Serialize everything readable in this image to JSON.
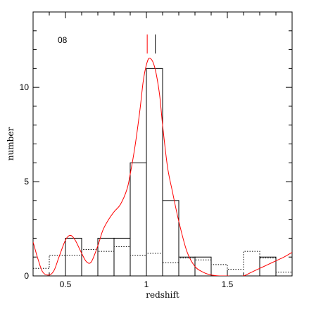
{
  "chart_data": {
    "type": "bar",
    "panel_label": "08",
    "xlabel": "redshift",
    "ylabel": "number",
    "xlim": [
      0.3,
      1.9
    ],
    "ylim": [
      0,
      14
    ],
    "x_ticks": [
      0.5,
      1,
      1.5
    ],
    "x_tick_labels": [
      "0.5",
      "1",
      "1.5"
    ],
    "y_ticks": [
      0,
      5,
      10
    ],
    "y_tick_labels": [
      "0",
      "5",
      "10"
    ],
    "bin_width": 0.1,
    "histogram": {
      "bin_starts": [
        0.3,
        0.4,
        0.5,
        0.6,
        0.7,
        0.8,
        0.9,
        1.0,
        1.1,
        1.2,
        1.3,
        1.4,
        1.5,
        1.6,
        1.7,
        1.8
      ],
      "values": [
        0,
        0,
        2,
        0,
        2,
        2,
        6,
        11,
        4,
        1,
        1,
        0,
        0,
        0,
        1,
        0
      ]
    },
    "dotted_distribution": {
      "bin_starts": [
        0.3,
        0.4,
        0.5,
        0.6,
        0.7,
        0.8,
        0.9,
        1.0,
        1.1,
        1.2,
        1.3,
        1.4,
        1.5,
        1.6,
        1.7,
        1.8
      ],
      "values": [
        0.4,
        1.1,
        1.1,
        1.4,
        1.3,
        1.55,
        1.1,
        1.2,
        0.7,
        0.95,
        0.85,
        0.6,
        0.35,
        1.3,
        0.95,
        0.2
      ]
    },
    "smoothed_curve": {
      "x": [
        0.3,
        0.33,
        0.36,
        0.4,
        0.43,
        0.46,
        0.5,
        0.53,
        0.56,
        0.6,
        0.63,
        0.66,
        0.7,
        0.73,
        0.76,
        0.8,
        0.84,
        0.88,
        0.9,
        0.93,
        0.96,
        0.98,
        1.0,
        1.02,
        1.05,
        1.08,
        1.1,
        1.13,
        1.16,
        1.2,
        1.25,
        1.3,
        1.35,
        1.4,
        1.45,
        1.5,
        1.55,
        1.6,
        1.65,
        1.7,
        1.75,
        1.8,
        1.85,
        1.9
      ],
      "y": [
        1.8,
        0.9,
        0.2,
        0.05,
        0.3,
        1.0,
        1.9,
        2.15,
        1.9,
        1.2,
        0.75,
        0.75,
        1.6,
        2.4,
        2.9,
        3.4,
        3.8,
        4.6,
        5.4,
        6.9,
        8.8,
        10.3,
        11.2,
        11.55,
        11.1,
        9.7,
        8.0,
        5.8,
        4.5,
        2.9,
        1.3,
        0.5,
        0.2,
        0.05,
        0.0,
        0.0,
        -0.05,
        0.0,
        0.2,
        0.4,
        0.6,
        0.8,
        1.0,
        1.25
      ]
    },
    "markers": [
      {
        "x": 1.005,
        "color": "#ff0000"
      },
      {
        "x": 1.055,
        "color": "#000000"
      }
    ],
    "colors": {
      "histogram": "#000000",
      "dotted": "#000000",
      "curve": "#ff0000"
    }
  }
}
